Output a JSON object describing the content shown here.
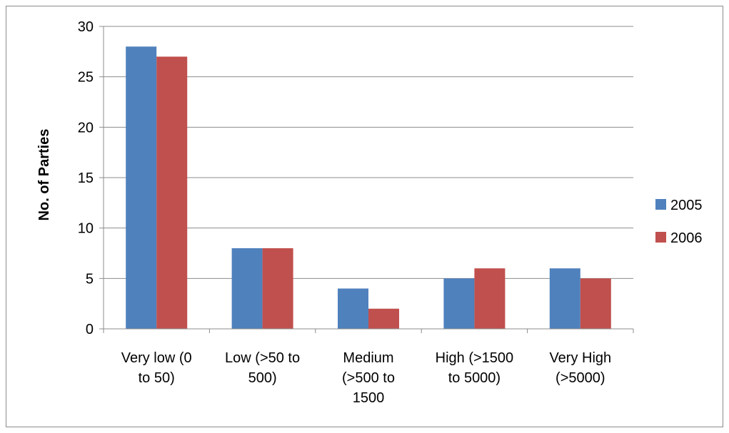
{
  "chart_data": {
    "type": "bar",
    "title": "",
    "xlabel": "",
    "ylabel": "No. of Parties",
    "ylim": [
      0,
      30
    ],
    "yticks": [
      0,
      5,
      10,
      15,
      20,
      25,
      30
    ],
    "grid": true,
    "legend_position": "right",
    "categories": [
      [
        "Very low (0",
        "to 50)"
      ],
      [
        "Low (>50 to",
        "500)"
      ],
      [
        "Medium",
        "(>500 to",
        "1500"
      ],
      [
        "High (>1500",
        "to 5000)"
      ],
      [
        "Very High",
        "(>5000)"
      ]
    ],
    "series": [
      {
        "name": "2005",
        "color": "#4f81bd",
        "values": [
          28,
          8,
          4,
          5,
          6
        ]
      },
      {
        "name": "2006",
        "color": "#c0504d",
        "values": [
          27,
          8,
          2,
          6,
          5
        ]
      }
    ]
  }
}
